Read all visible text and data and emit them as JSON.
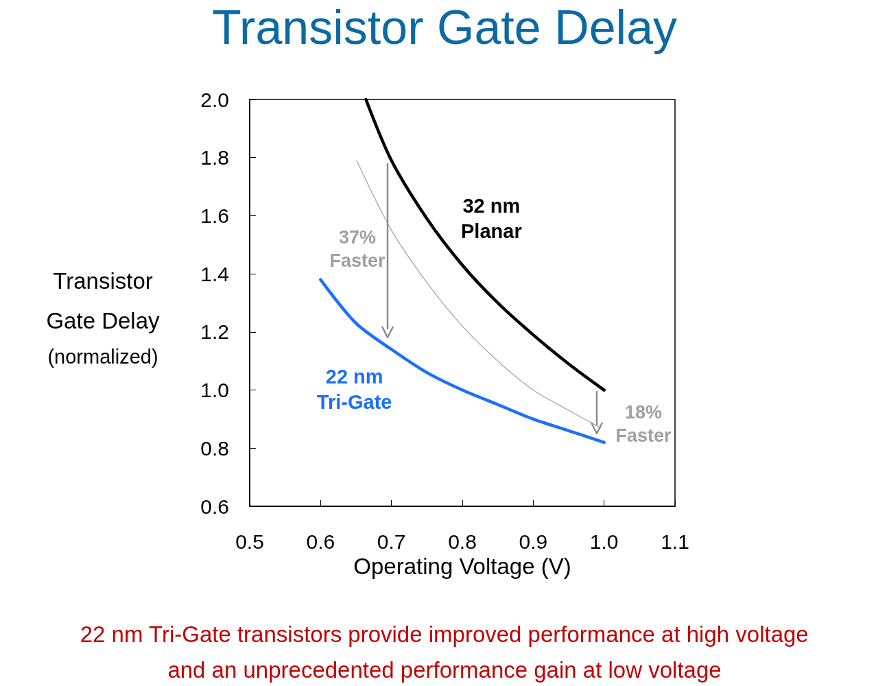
{
  "chart_data": {
    "type": "line",
    "title": "Transistor Gate Delay",
    "xlabel": "Operating Voltage (V)",
    "ylabel": "Transistor\nGate Delay\n(normalized)",
    "xlim": [
      0.5,
      1.1
    ],
    "xticks": [
      0.5,
      0.6,
      0.7,
      0.8,
      0.9,
      {
        "value": 1,
        "label": "1.0"
      },
      1.1
    ],
    "ylim": [
      0.6,
      2
    ],
    "yticks": [
      0.6,
      0.8,
      {
        "value": 1,
        "label": "1.0"
      },
      1.2,
      1.4,
      1.6,
      1.8,
      {
        "value": 2,
        "label": "2.0"
      }
    ],
    "grid": false,
    "legend": false,
    "marker": "none",
    "line_style": "solid",
    "series": [
      {
        "name": "32 nm\nPlanar",
        "color": "#000000",
        "x": [
          0.664,
          0.7,
          0.75,
          0.8,
          0.85,
          0.9,
          0.95,
          1.0
        ],
        "values": [
          2.0,
          1.79,
          1.59,
          1.43,
          1.3,
          1.19,
          1.09,
          1.0
        ]
      },
      {
        "color": "#a6a6a6",
        "x": [
          0.651,
          0.7,
          0.75,
          0.8,
          0.85,
          0.9,
          0.95,
          0.995
        ],
        "values": [
          1.79,
          1.55,
          1.37,
          1.22,
          1.1,
          1.0,
          0.93,
          0.87
        ]
      },
      {
        "name": "22 nm\nTri-Gate",
        "color": "#1a6fff",
        "x": [
          0.6,
          0.65,
          0.7,
          0.75,
          0.8,
          0.85,
          0.9,
          0.95,
          1.0
        ],
        "values": [
          1.38,
          1.23,
          1.14,
          1.06,
          1.0,
          0.95,
          0.9,
          0.86,
          0.82
        ]
      }
    ],
    "annotations": [
      "37%\nFaster",
      "18%\nFaster",
      "22 nm Tri-Gate transistors provide improved performance at high voltage",
      "and an unprecedented performance gain at low voltage"
    ]
  }
}
